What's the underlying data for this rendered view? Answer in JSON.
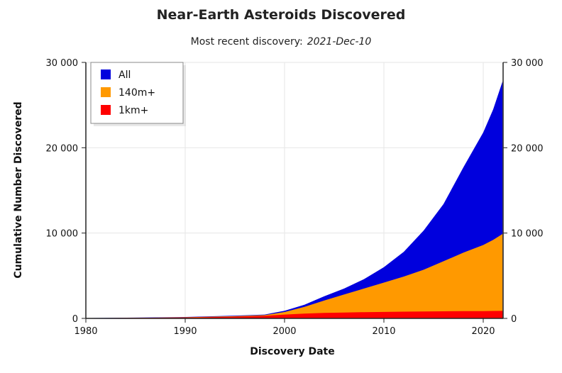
{
  "chart_data": {
    "type": "area",
    "title": "Near-Earth Asteroids Discovered",
    "subtitle_prefix": "Most recent discovery:",
    "subtitle_date": "2021-Dec-10",
    "xlabel": "Discovery Date",
    "ylabel": "Cumulative Number Discovered",
    "xlim": [
      1980,
      2022
    ],
    "ylim": [
      0,
      30000
    ],
    "x_ticks": [
      1980,
      1990,
      2000,
      2010,
      2020
    ],
    "x_tick_labels": [
      "1980",
      "1990",
      "2000",
      "2010",
      "2020"
    ],
    "y_ticks": [
      0,
      10000,
      20000,
      30000
    ],
    "y_tick_labels": [
      "0",
      "10 000",
      "20 000",
      "30 000"
    ],
    "grid": true,
    "legend_position": "top-left",
    "stacking": "overlapping cumulative totals",
    "x": [
      1980,
      1985,
      1990,
      1995,
      1998,
      2000,
      2002,
      2004,
      2006,
      2008,
      2010,
      2012,
      2014,
      2016,
      2018,
      2020,
      2021,
      2021.95
    ],
    "series": [
      {
        "name": "All",
        "color": "#0000dd",
        "values": [
          40,
          90,
          170,
          320,
          450,
          900,
          1600,
          2600,
          3500,
          4600,
          6000,
          7800,
          10300,
          13400,
          17700,
          21800,
          24500,
          27800
        ]
      },
      {
        "name": "140m+",
        "color": "#ff9900",
        "values": [
          30,
          70,
          130,
          260,
          380,
          750,
          1350,
          2100,
          2800,
          3500,
          4200,
          4900,
          5700,
          6700,
          7700,
          8600,
          9200,
          9900
        ]
      },
      {
        "name": "1km+",
        "color": "#ff0000",
        "values": [
          25,
          60,
          110,
          200,
          300,
          450,
          560,
          640,
          690,
          730,
          760,
          790,
          810,
          830,
          845,
          860,
          870,
          880
        ]
      }
    ]
  },
  "colors": {
    "background": "#ffffff",
    "grid": "#e6e6e6",
    "axis": "#222222",
    "legend_border": "#888888"
  }
}
